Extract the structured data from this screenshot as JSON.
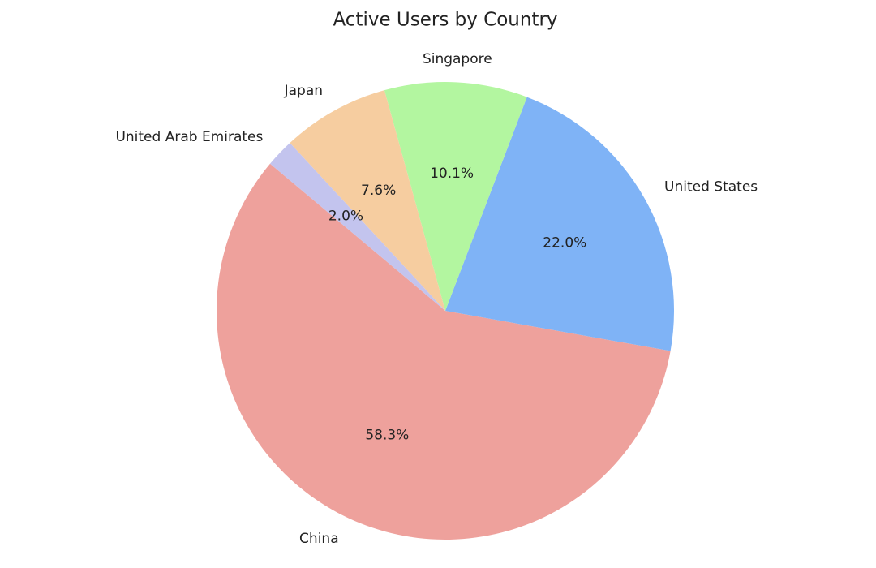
{
  "chart_data": {
    "type": "pie",
    "title": "Active Users by Country",
    "categories": [
      "China",
      "United States",
      "Singapore",
      "Japan",
      "United Arab Emirates"
    ],
    "values": [
      58.3,
      22.0,
      10.1,
      7.6,
      2.0
    ],
    "value_labels": [
      "58.3%",
      "22.0%",
      "10.1%",
      "7.6%",
      "2.0%"
    ],
    "colors": [
      "#eea19c",
      "#7fb3f6",
      "#b3f6a0",
      "#f6cda0",
      "#c3c4ee"
    ],
    "startangle": 140
  }
}
